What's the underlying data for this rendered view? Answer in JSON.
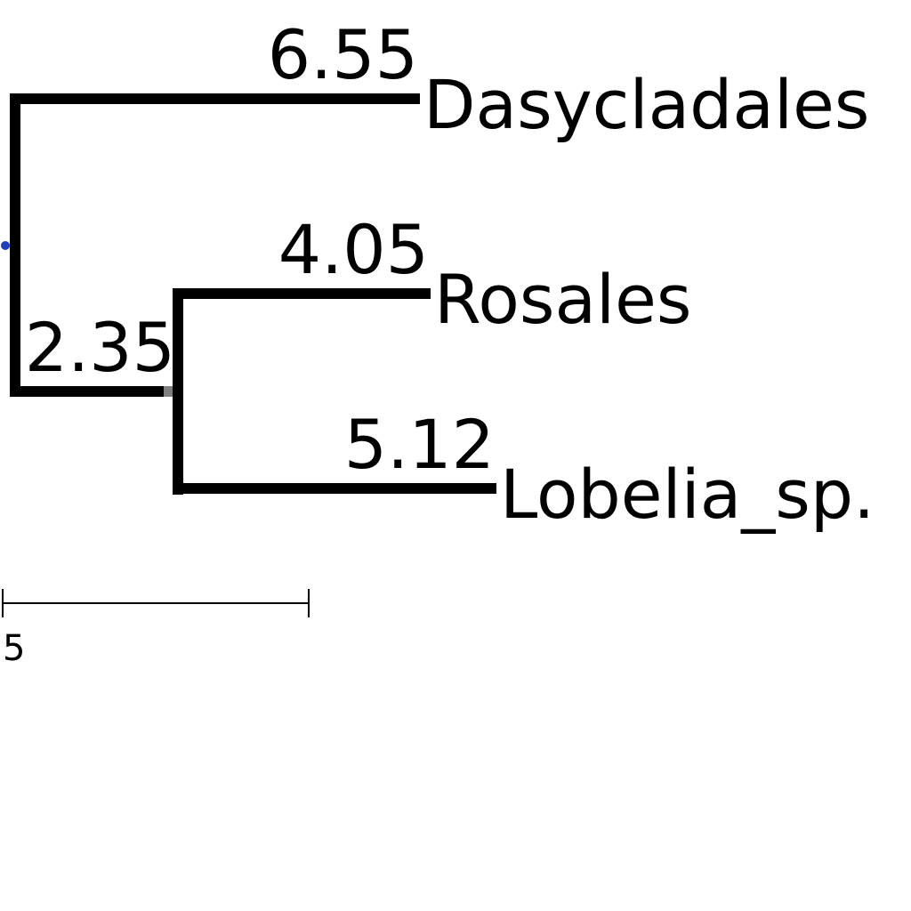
{
  "tree": {
    "root_node_color": "#1f3fbf",
    "branch_color": "#000000",
    "internal_node_marker_color": "#808080",
    "leaves": [
      {
        "name": "Dasycladales",
        "branch_length": "6.55"
      },
      {
        "name": "Rosales",
        "branch_length": "4.05"
      },
      {
        "name": "Lobelia_sp.",
        "branch_length": "5.12"
      }
    ],
    "internal_branch": {
      "branch_length": "2.35"
    }
  },
  "scale_bar": {
    "label": "5"
  }
}
